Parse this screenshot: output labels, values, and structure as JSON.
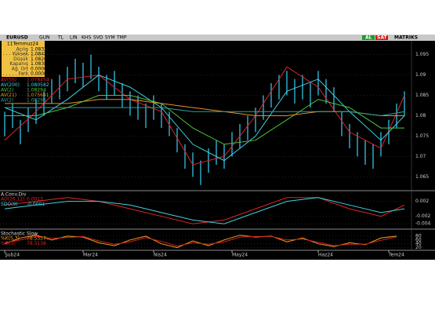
{
  "toolbar": {
    "symbol": "EURUSD",
    "buttons": [
      "GUN",
      "TL",
      "LIN",
      "KHS",
      "SVD",
      "SYM",
      "TMP"
    ],
    "buy": "AL",
    "sell": "SAT",
    "brand": "MATRIKS"
  },
  "info_box": {
    "date": "11Temmuz24",
    "rows": [
      {
        "label": "Açılış",
        "value": "1.0832"
      },
      {
        "label": "Yüksek",
        "value": "1.0843"
      },
      {
        "label": "Düşük",
        "value": "1.0826"
      },
      {
        "label": "Kapanış",
        "value": "1.0838"
      },
      {
        "label": "Ağ. Ort",
        "value": "0.0000"
      },
      {
        "label": "Fark",
        "value": "0.0006"
      }
    ]
  },
  "chart_data": [
    {
      "type": "candlestick",
      "color": "#2fb3d6",
      "high": [
        1.081,
        1.083,
        1.079,
        1.082,
        1.084,
        1.086,
        1.089,
        1.09,
        1.092,
        1.094,
        1.093,
        1.095,
        1.092,
        1.09,
        1.091,
        1.088,
        1.086,
        1.085,
        1.083,
        1.085,
        1.083,
        1.081,
        1.077,
        1.073,
        1.071,
        1.069,
        1.072,
        1.074,
        1.073,
        1.076,
        1.078,
        1.08,
        1.082,
        1.085,
        1.088,
        1.09,
        1.091,
        1.089,
        1.09,
        1.088,
        1.091,
        1.089,
        1.087,
        1.081,
        1.078,
        1.076,
        1.074,
        1.073,
        1.076,
        1.079,
        1.083,
        1.086
      ],
      "low": [
        1.075,
        1.077,
        1.073,
        1.076,
        1.078,
        1.08,
        1.083,
        1.084,
        1.086,
        1.088,
        1.087,
        1.089,
        1.086,
        1.084,
        1.085,
        1.082,
        1.08,
        1.079,
        1.077,
        1.079,
        1.077,
        1.075,
        1.071,
        1.067,
        1.065,
        1.063,
        1.066,
        1.068,
        1.067,
        1.07,
        1.072,
        1.074,
        1.076,
        1.079,
        1.082,
        1.084,
        1.085,
        1.083,
        1.084,
        1.082,
        1.085,
        1.083,
        1.081,
        1.075,
        1.072,
        1.07,
        1.068,
        1.067,
        1.07,
        1.073,
        1.077,
        1.08
      ],
      "series": [
        {
          "name": "AV(5S)",
          "legend_value": "1.078454",
          "color": "#e0242a",
          "x": [
            0,
            4,
            8,
            12,
            16,
            20,
            24,
            28,
            32,
            36,
            40,
            44,
            48,
            51
          ],
          "values": [
            1.074,
            1.081,
            1.089,
            1.09,
            1.084,
            1.081,
            1.068,
            1.07,
            1.08,
            1.092,
            1.087,
            1.076,
            1.072,
            1.085
          ]
        },
        {
          "name": "AV(200)",
          "legend_value": "1.080582",
          "color": "#3fd0e0",
          "x": [
            0,
            4,
            8,
            12,
            16,
            20,
            24,
            28,
            32,
            36,
            40,
            44,
            48,
            51
          ],
          "values": [
            1.082,
            1.079,
            1.084,
            1.09,
            1.087,
            1.082,
            1.073,
            1.069,
            1.075,
            1.086,
            1.089,
            1.081,
            1.074,
            1.08
          ]
        },
        {
          "name": "AV(2)",
          "legend_value": "1.08294",
          "color": "#4cc53a",
          "x": [
            0,
            4,
            8,
            12,
            16,
            20,
            24,
            28,
            32,
            36,
            40,
            44,
            48,
            51
          ],
          "values": [
            1.08,
            1.08,
            1.082,
            1.085,
            1.085,
            1.083,
            1.077,
            1.073,
            1.074,
            1.079,
            1.084,
            1.082,
            1.077,
            1.077
          ]
        },
        {
          "name": "AV(21)",
          "legend_value": "1.075641",
          "color": "#e8902a",
          "x": [
            0,
            4,
            8,
            12,
            16,
            20,
            24,
            28,
            32,
            36,
            40,
            44,
            48,
            51
          ],
          "values": [
            1.083,
            1.083,
            1.083,
            1.084,
            1.084,
            1.083,
            1.082,
            1.081,
            1.08,
            1.08,
            1.081,
            1.081,
            1.08,
            1.08
          ]
        },
        {
          "name": "AV(2)",
          "legend_value": "1.08294",
          "color": "#2aa39a",
          "x": [
            0,
            4,
            8,
            12,
            16,
            20,
            24,
            28,
            32,
            36,
            40,
            44,
            48,
            51
          ],
          "values": [
            1.082,
            1.082,
            1.082,
            1.082,
            1.082,
            1.082,
            1.081,
            1.081,
            1.081,
            1.081,
            1.081,
            1.081,
            1.08,
            1.081
          ]
        }
      ],
      "ylim": [
        1.062,
        1.098
      ],
      "yticks": [
        1.065,
        1.07,
        1.075,
        1.08,
        1.085,
        1.09,
        1.095
      ],
      "xticks": [
        {
          "value": 0,
          "label": "Şub24"
        },
        {
          "value": 10,
          "label": "Mar24"
        },
        {
          "value": 19,
          "label": "Nis24"
        },
        {
          "value": 29,
          "label": "May24"
        },
        {
          "value": 40,
          "label": "Haz24"
        },
        {
          "value": 49,
          "label": "Tem24"
        }
      ]
    },
    {
      "type": "line",
      "title": "A.Conv.Div",
      "series": [
        {
          "name": "AO(26,12)",
          "legend_value": "0.0013",
          "color": "#e0242a",
          "x": [
            0,
            4,
            8,
            12,
            16,
            20,
            24,
            28,
            32,
            36,
            40,
            44,
            48,
            51
          ],
          "values": [
            0.001,
            0.002,
            0.003,
            0.002,
            0.0,
            -0.002,
            -0.004,
            -0.003,
            0.0,
            0.003,
            0.003,
            0.0,
            -0.002,
            0.001
          ]
        },
        {
          "name": "SDO(9)",
          "legend_value": "-0.0001",
          "color": "#3fd0e0",
          "x": [
            0,
            4,
            8,
            12,
            16,
            20,
            24,
            28,
            32,
            36,
            40,
            44,
            48,
            51
          ],
          "values": [
            0.0,
            0.001,
            0.002,
            0.002,
            0.001,
            -0.001,
            -0.003,
            -0.004,
            -0.001,
            0.002,
            0.003,
            0.001,
            -0.001,
            0.0
          ]
        }
      ],
      "ylim": [
        -0.005,
        0.004
      ],
      "yticks": [
        -0.004,
        -0.002,
        0.002
      ]
    },
    {
      "type": "line",
      "title": "Stochastic Slow",
      "series": [
        {
          "name": "%K(5,3)",
          "legend_value": "78.5337",
          "color": "#f0a020",
          "x": [
            0,
            2,
            4,
            6,
            8,
            10,
            12,
            14,
            16,
            18,
            20,
            22,
            24,
            26,
            28,
            30,
            32,
            34,
            36,
            38,
            40,
            42,
            44,
            46,
            48,
            50
          ],
          "values": [
            40,
            70,
            85,
            60,
            80,
            75,
            45,
            30,
            60,
            80,
            40,
            20,
            55,
            30,
            60,
            85,
            75,
            80,
            50,
            70,
            40,
            25,
            45,
            35,
            70,
            80
          ]
        },
        {
          "name": "%D(3)",
          "legend_value": "78.3138",
          "color": "#d02020",
          "x": [
            0,
            2,
            4,
            6,
            8,
            10,
            12,
            14,
            16,
            18,
            20,
            22,
            24,
            26,
            28,
            30,
            32,
            34,
            36,
            38,
            40,
            42,
            44,
            46,
            48,
            50
          ],
          "values": [
            45,
            60,
            78,
            68,
            72,
            78,
            55,
            38,
            50,
            72,
            52,
            28,
            45,
            38,
            50,
            75,
            78,
            78,
            60,
            65,
            48,
            30,
            38,
            38,
            58,
            76
          ]
        }
      ],
      "ylim": [
        10,
        100
      ],
      "yticks": [
        20,
        40,
        60,
        80
      ]
    }
  ]
}
